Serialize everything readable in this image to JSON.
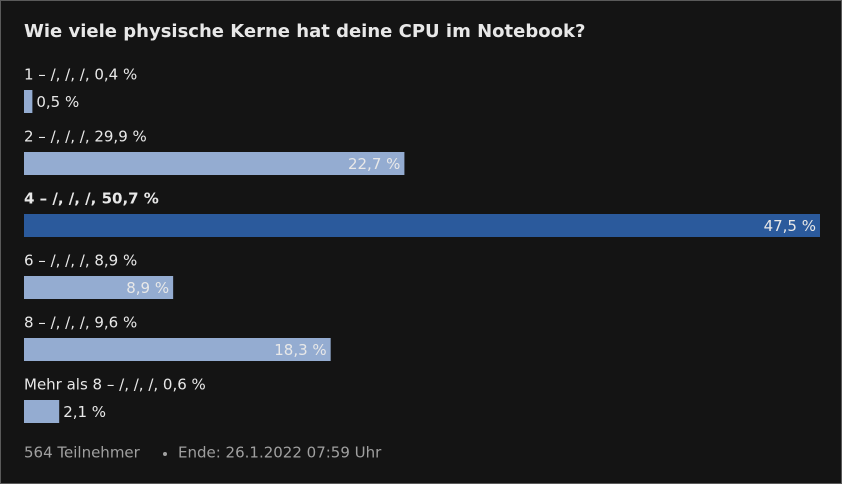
{
  "chart_data": {
    "type": "bar",
    "title": "Wie viele physische Kerne hat deine CPU im Notebook?",
    "categories": [
      "1 – /, /, /, 0,4 %",
      "2 – /, /, /, 29,9 %",
      "4 – /, /, /, 50,7 %",
      "6 – /, /, /, 8,9 %",
      "8 – /, /, /, 9,6 %",
      "Mehr als 8 – /, /, /, 0,6 %"
    ],
    "values": [
      0.5,
      22.7,
      47.5,
      8.9,
      18.3,
      2.1
    ],
    "value_labels": [
      "0,5 %",
      "22,7 %",
      "47,5 %",
      "8,9 %",
      "18,3 %",
      "2,1 %"
    ],
    "color": "#94acd1",
    "highlight_color": "#2b5a9c",
    "participants": "564 Teilnehmer",
    "end": "Ende: 26.1.2022 07:59 Uhr"
  }
}
